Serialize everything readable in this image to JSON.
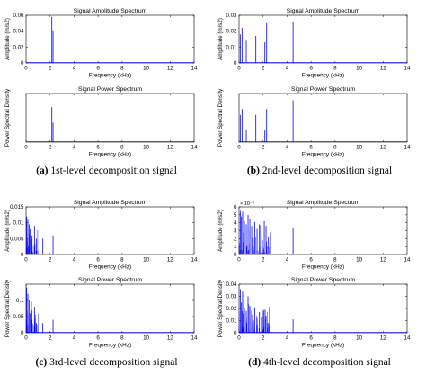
{
  "figure": {
    "captions": [
      {
        "letter": "(a)",
        "text": "1st-level decomposition signal"
      },
      {
        "letter": "(b)",
        "text": "2nd-level decomposition signal"
      },
      {
        "letter": "(c)",
        "text": "3rd-level decomposition signal"
      },
      {
        "letter": "(d)",
        "text": "4th-level decomposition signal"
      }
    ]
  },
  "chart_data": [
    {
      "type": "line",
      "panel": "a",
      "title": "Signal Amplitude Spectrum",
      "xlabel": "Frequency (kHz)",
      "ylabel": "Amplitude (m/s2)",
      "xlim": [
        0,
        14
      ],
      "ylim": [
        0,
        0.06
      ],
      "xticks": [
        "0",
        "2",
        "4",
        "6",
        "8",
        "10",
        "12",
        "14"
      ],
      "yticks": [
        "0",
        "0.02",
        "0.04",
        "0.06"
      ],
      "exponent": "",
      "color": "#0000ff",
      "peaks": [
        [
          2.15,
          0.058
        ],
        [
          2.25,
          0.041
        ]
      ]
    },
    {
      "type": "line",
      "panel": "a",
      "title": "Signal Power Spectrum",
      "xlabel": "Frequency (kHz)",
      "ylabel": "Power Spectral Density",
      "xlim": [
        0,
        14
      ],
      "ylim": [
        0,
        0.5
      ],
      "xticks": [
        "0",
        "2",
        "4",
        "6",
        "8",
        "10",
        "12",
        "14"
      ],
      "yticks": [],
      "exponent": "",
      "color": "#0000ff",
      "peaks": [
        [
          2.15,
          0.36
        ],
        [
          2.25,
          0.2
        ]
      ]
    },
    {
      "type": "line",
      "panel": "b",
      "title": "Signal Amplitude Spectrum",
      "xlabel": "Frequency (kHz)",
      "ylabel": "Amplitude (m/s2)",
      "xlim": [
        0,
        14
      ],
      "ylim": [
        0,
        0.03
      ],
      "xticks": [
        "0",
        "2",
        "4",
        "6",
        "8",
        "10",
        "12",
        "14"
      ],
      "yticks": [
        "0",
        "0.01",
        "0.02",
        "0.03"
      ],
      "exponent": "",
      "color": "#0000ff",
      "peaks": [
        [
          0.1,
          0.018
        ],
        [
          0.25,
          0.022
        ],
        [
          0.6,
          0.014
        ],
        [
          1.4,
          0.017
        ],
        [
          2.15,
          0.013
        ],
        [
          2.3,
          0.025
        ],
        [
          4.5,
          0.026
        ]
      ]
    },
    {
      "type": "line",
      "panel": "b",
      "title": "Signal Power Spectrum",
      "xlabel": "Frequency (kHz)",
      "ylabel": "Power Spectral Density",
      "xlim": [
        0,
        14
      ],
      "ylim": [
        0,
        0.5
      ],
      "xticks": [
        "0",
        "2",
        "4",
        "6",
        "8",
        "10",
        "12",
        "14"
      ],
      "yticks": [],
      "exponent": "",
      "color": "#0000ff",
      "peaks": [
        [
          0.1,
          0.28
        ],
        [
          0.25,
          0.34
        ],
        [
          0.6,
          0.12
        ],
        [
          1.4,
          0.28
        ],
        [
          2.15,
          0.12
        ],
        [
          2.3,
          0.34
        ],
        [
          4.5,
          0.43
        ]
      ]
    },
    {
      "type": "line",
      "panel": "c",
      "title": "Signal Amplitude Spectrum",
      "xlabel": "Frequency (kHz)",
      "ylabel": "Amplitude (m/s2)",
      "xlim": [
        0,
        14
      ],
      "ylim": [
        0,
        0.015
      ],
      "xticks": [
        "0",
        "2",
        "4",
        "6",
        "8",
        "10",
        "12",
        "14"
      ],
      "yticks": [
        "0",
        "0.005",
        "0.01",
        "0.015"
      ],
      "exponent": "",
      "color": "#0000ff",
      "peaks": [
        [
          0.05,
          0.012
        ],
        [
          0.15,
          0.011
        ],
        [
          0.25,
          0.0095
        ],
        [
          0.35,
          0.008
        ],
        [
          0.5,
          0.006
        ],
        [
          0.7,
          0.009
        ],
        [
          0.85,
          0.005
        ],
        [
          1.4,
          0.005
        ],
        [
          2.25,
          0.006
        ]
      ]
    },
    {
      "type": "line",
      "panel": "c",
      "title": "Signal Power Spectrum",
      "xlabel": "Frequency (kHz)",
      "ylabel": "Power Spectral Density",
      "xlim": [
        0,
        14
      ],
      "ylim": [
        0,
        0.15
      ],
      "xticks": [
        "0",
        "2",
        "4",
        "6",
        "8",
        "10",
        "12",
        "14"
      ],
      "yticks": [
        "0",
        "0.05",
        "0.1"
      ],
      "exponent": "",
      "color": "#0000ff",
      "peaks": [
        [
          0.05,
          0.14
        ],
        [
          0.15,
          0.12
        ],
        [
          0.25,
          0.1
        ],
        [
          0.35,
          0.06
        ],
        [
          0.5,
          0.04
        ],
        [
          0.7,
          0.08
        ],
        [
          0.85,
          0.03
        ],
        [
          1.4,
          0.03
        ],
        [
          2.25,
          0.04
        ]
      ]
    },
    {
      "type": "line",
      "panel": "d",
      "title": "Signal Amplitude Spectrum",
      "xlabel": "Frequency (kHz)",
      "ylabel": "Amplitude (m/s2)",
      "xlim": [
        0,
        14
      ],
      "ylim": [
        0,
        6
      ],
      "xticks": [
        "0",
        "2",
        "4",
        "6",
        "8",
        "10",
        "12",
        "14"
      ],
      "yticks": [
        "0",
        "1",
        "2",
        "3",
        "4",
        "5",
        "6"
      ],
      "exponent": "× 10⁻³",
      "color": "#0000ff",
      "peaks": [
        [
          0.1,
          5.5
        ],
        [
          0.2,
          4.8
        ],
        [
          0.3,
          5.4
        ],
        [
          0.45,
          4.2
        ],
        [
          0.6,
          3.8
        ],
        [
          0.75,
          5.0
        ],
        [
          0.9,
          4.5
        ],
        [
          1.05,
          3.6
        ],
        [
          1.3,
          4.1
        ],
        [
          1.5,
          3.2
        ],
        [
          1.7,
          3.8
        ],
        [
          1.9,
          2.8
        ],
        [
          2.1,
          4.2
        ],
        [
          2.25,
          3.6
        ],
        [
          2.45,
          2.2
        ],
        [
          4.5,
          3.3
        ]
      ]
    },
    {
      "type": "line",
      "panel": "d",
      "title": "Signal Power Spectrum",
      "xlabel": "Frequency (kHz)",
      "ylabel": "Power Spectral Density",
      "xlim": [
        0,
        14
      ],
      "ylim": [
        0,
        0.04
      ],
      "xticks": [
        "0",
        "2",
        "4",
        "6",
        "8",
        "10",
        "12",
        "14"
      ],
      "yticks": [
        "0",
        "0.01",
        "0.02",
        "0.03",
        "0.04"
      ],
      "exponent": "",
      "color": "#0000ff",
      "peaks": [
        [
          0.1,
          0.036
        ],
        [
          0.2,
          0.025
        ],
        [
          0.3,
          0.034
        ],
        [
          0.45,
          0.02
        ],
        [
          0.6,
          0.018
        ],
        [
          0.75,
          0.03
        ],
        [
          0.9,
          0.022
        ],
        [
          1.05,
          0.015
        ],
        [
          1.3,
          0.021
        ],
        [
          1.5,
          0.012
        ],
        [
          1.7,
          0.017
        ],
        [
          1.9,
          0.01
        ],
        [
          2.1,
          0.019
        ],
        [
          2.25,
          0.014
        ],
        [
          2.45,
          0.008
        ],
        [
          4.5,
          0.011
        ]
      ]
    }
  ]
}
